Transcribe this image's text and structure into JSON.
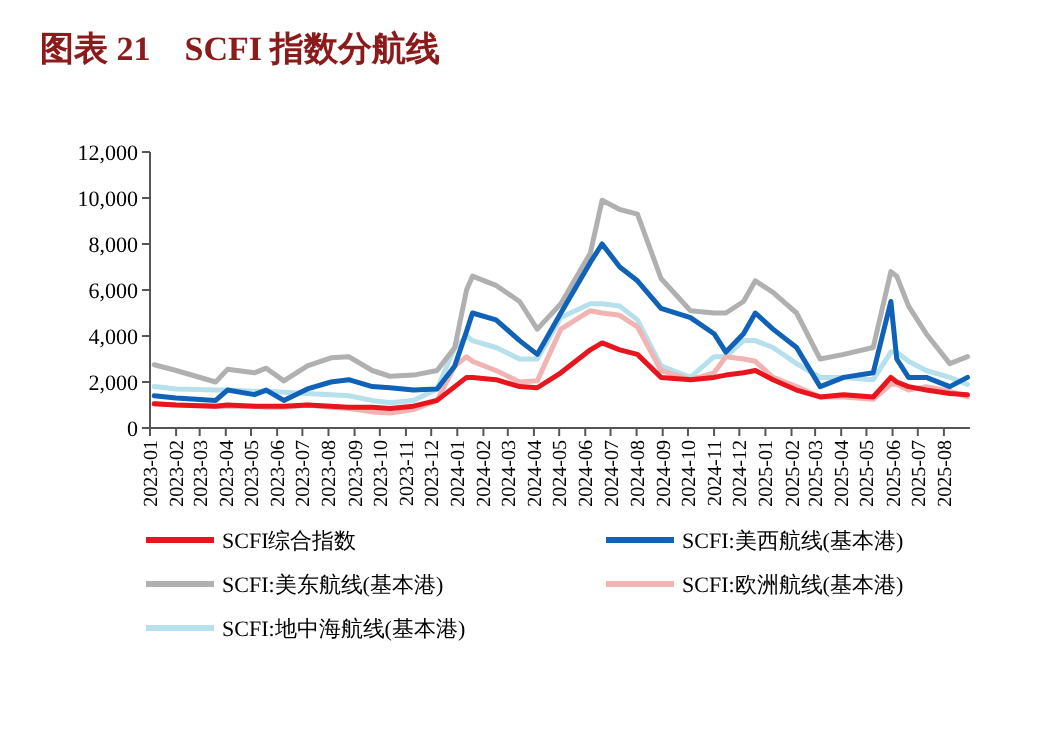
{
  "chart_data": {
    "type": "line",
    "title": "图表 21    SCFI 指数分航线",
    "x": [
      "2023-01-06",
      "2023-02-01",
      "2023-03-20",
      "2023-04-03",
      "2023-05-05",
      "2023-05-19",
      "2023-06-09",
      "2023-07-07",
      "2023-08-04",
      "2023-08-25",
      "2023-09-22",
      "2023-10-13",
      "2023-11-10",
      "2023-12-08",
      "2023-12-29",
      "2024-01-12",
      "2024-01-19",
      "2024-02-16",
      "2024-03-15",
      "2024-04-05",
      "2024-05-03",
      "2024-06-07",
      "2024-06-21",
      "2024-07-12",
      "2024-08-02",
      "2024-08-30",
      "2024-10-04",
      "2024-11-01",
      "2024-11-15",
      "2024-12-06",
      "2024-12-20",
      "2025-01-10",
      "2025-02-07",
      "2025-03-07",
      "2025-04-04",
      "2025-05-09",
      "2025-05-30",
      "2025-06-06",
      "2025-06-20",
      "2025-07-11",
      "2025-08-08",
      "2025-08-29"
    ],
    "series": [
      {
        "name": "SCFI综合指数",
        "color": "#e8141e",
        "values": [
          1050,
          1000,
          950,
          1000,
          950,
          950,
          950,
          1000,
          950,
          900,
          900,
          850,
          950,
          1200,
          1800,
          2200,
          2200,
          2100,
          1800,
          1750,
          2400,
          3400,
          3700,
          3400,
          3200,
          2200,
          2100,
          2200,
          2300,
          2400,
          2500,
          2100,
          1650,
          1350,
          1450,
          1350,
          2200,
          2000,
          1800,
          1650,
          1500,
          1450
        ]
      },
      {
        "name": "SCFI:美西航线(基本港)",
        "color": "#0f62b8",
        "values": [
          1400,
          1300,
          1200,
          1650,
          1450,
          1650,
          1200,
          1700,
          2000,
          2100,
          1800,
          1750,
          1650,
          1700,
          2700,
          4200,
          5000,
          4700,
          3800,
          3200,
          5000,
          7200,
          8000,
          7000,
          6400,
          5200,
          4800,
          4100,
          3300,
          4100,
          5000,
          4300,
          3500,
          1800,
          2200,
          2400,
          5500,
          3000,
          2200,
          2200,
          1800,
          2200
        ]
      },
      {
        "name": "SCFI:美东航线(基本港)",
        "color": "#b0b0b0",
        "values": [
          2750,
          2500,
          2000,
          2550,
          2400,
          2600,
          2050,
          2700,
          3050,
          3100,
          2500,
          2250,
          2300,
          2500,
          3500,
          6000,
          6600,
          6200,
          5500,
          4300,
          5400,
          7600,
          9900,
          9500,
          9300,
          6500,
          5100,
          5000,
          5000,
          5500,
          6400,
          5900,
          5000,
          3000,
          3200,
          3500,
          6800,
          6600,
          5300,
          4100,
          2800,
          3100
        ]
      },
      {
        "name": "SCFI:欧洲航线(基本港)",
        "color": "#f2b3b3",
        "values": [
          1050,
          1000,
          950,
          950,
          950,
          900,
          900,
          1000,
          900,
          850,
          700,
          650,
          800,
          1200,
          2700,
          3100,
          2900,
          2500,
          2000,
          2050,
          4300,
          5100,
          5000,
          4900,
          4400,
          2500,
          2100,
          2400,
          3100,
          3000,
          2900,
          2200,
          1800,
          1350,
          1350,
          1250,
          1900,
          1900,
          1650,
          1800,
          1600,
          1350
        ]
      },
      {
        "name": "SCFI:地中海航线(基本港)",
        "color": "#b5e0ec",
        "values": [
          1800,
          1700,
          1650,
          1650,
          1600,
          1600,
          1550,
          1500,
          1450,
          1400,
          1200,
          1100,
          1200,
          1700,
          3500,
          4000,
          3800,
          3500,
          3000,
          3000,
          4800,
          5400,
          5400,
          5300,
          4700,
          2700,
          2200,
          3100,
          3100,
          3800,
          3800,
          3500,
          2800,
          2200,
          2200,
          2100,
          3300,
          3300,
          2900,
          2500,
          2200,
          1900
        ]
      }
    ],
    "xlim": [
      "2023-01-01",
      "2025-09-01"
    ],
    "xticks": [
      "2023-01",
      "2023-02",
      "2023-03",
      "2023-04",
      "2023-05",
      "2023-06",
      "2023-07",
      "2023-08",
      "2023-09",
      "2023-10",
      "2023-11",
      "2023-12",
      "2024-01",
      "2024-02",
      "2024-03",
      "2024-04",
      "2024-05",
      "2024-06",
      "2024-07",
      "2024-08",
      "2024-09",
      "2024-10",
      "2024-11",
      "2024-12",
      "2025-01",
      "2025-02",
      "2025-03",
      "2025-04",
      "2025-05",
      "2025-06",
      "2025-07",
      "2025-08"
    ],
    "ylim": [
      0,
      12000
    ],
    "yticks": [
      {
        "value": 0,
        "label": "0"
      },
      {
        "value": 2000,
        "label": "2,000"
      },
      {
        "value": 4000,
        "label": "4,000"
      },
      {
        "value": 6000,
        "label": "6,000"
      },
      {
        "value": 8000,
        "label": "8,000"
      },
      {
        "value": 10000,
        "label": "10,000"
      },
      {
        "value": 12000,
        "label": "12,000"
      }
    ],
    "grid": false,
    "legend": "bottom",
    "line_style": "solid",
    "marker": "none"
  }
}
